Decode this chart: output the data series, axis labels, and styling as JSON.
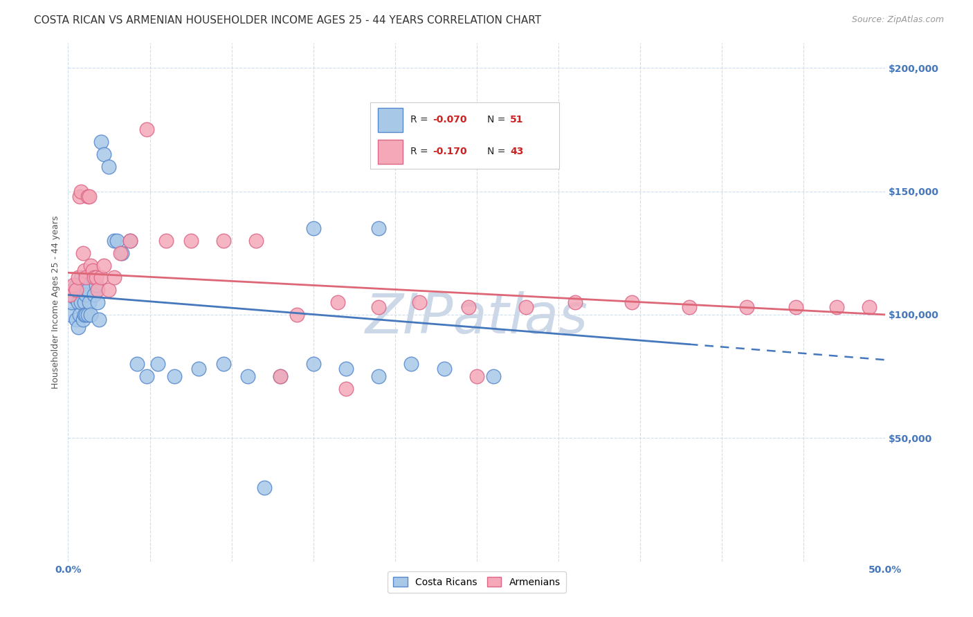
{
  "title": "COSTA RICAN VS ARMENIAN HOUSEHOLDER INCOME AGES 25 - 44 YEARS CORRELATION CHART",
  "source": "Source: ZipAtlas.com",
  "ylabel": "Householder Income Ages 25 - 44 years",
  "xlim": [
    0.0,
    0.5
  ],
  "ylim": [
    0,
    210000
  ],
  "cr_color": "#a8c8e8",
  "arm_color": "#f4a8b8",
  "cr_edge": "#5588cc",
  "arm_edge": "#dd6688",
  "bg_color": "#ffffff",
  "watermark_color": "#ccd8e8",
  "legend_r1": "R = -0.070",
  "legend_n1": "N = 51",
  "legend_r2": "R =  -0.170",
  "legend_n2": "N = 43",
  "cr_line_color": "#4477bb",
  "arm_line_color": "#dd6677",
  "costa_ricans_x": [
    0.001,
    0.002,
    0.003,
    0.004,
    0.005,
    0.005,
    0.006,
    0.006,
    0.007,
    0.007,
    0.008,
    0.008,
    0.009,
    0.009,
    0.01,
    0.01,
    0.011,
    0.011,
    0.012,
    0.012,
    0.013,
    0.014,
    0.015,
    0.016,
    0.017,
    0.018,
    0.019,
    0.02,
    0.022,
    0.025,
    0.028,
    0.03,
    0.033,
    0.038,
    0.042,
    0.048,
    0.055,
    0.065,
    0.08,
    0.095,
    0.11,
    0.13,
    0.15,
    0.17,
    0.19,
    0.21,
    0.23,
    0.26,
    0.15,
    0.19,
    0.12
  ],
  "costa_ricans_y": [
    100000,
    105000,
    110000,
    107000,
    98000,
    112000,
    95000,
    105000,
    100000,
    108000,
    115000,
    105000,
    98000,
    110000,
    105000,
    100000,
    108000,
    100000,
    110000,
    100000,
    105000,
    100000,
    115000,
    108000,
    112000,
    105000,
    98000,
    170000,
    165000,
    160000,
    130000,
    130000,
    125000,
    130000,
    80000,
    75000,
    80000,
    75000,
    78000,
    80000,
    75000,
    75000,
    80000,
    78000,
    75000,
    80000,
    78000,
    75000,
    135000,
    135000,
    30000
  ],
  "armenians_x": [
    0.001,
    0.003,
    0.005,
    0.006,
    0.007,
    0.008,
    0.009,
    0.01,
    0.011,
    0.012,
    0.013,
    0.014,
    0.015,
    0.016,
    0.017,
    0.018,
    0.02,
    0.022,
    0.025,
    0.028,
    0.032,
    0.038,
    0.048,
    0.06,
    0.075,
    0.095,
    0.115,
    0.14,
    0.165,
    0.19,
    0.215,
    0.245,
    0.28,
    0.31,
    0.345,
    0.38,
    0.415,
    0.445,
    0.47,
    0.49,
    0.17,
    0.25,
    0.13
  ],
  "armenians_y": [
    108000,
    112000,
    110000,
    115000,
    148000,
    150000,
    125000,
    118000,
    115000,
    148000,
    148000,
    120000,
    118000,
    115000,
    115000,
    110000,
    115000,
    120000,
    110000,
    115000,
    125000,
    130000,
    175000,
    130000,
    130000,
    130000,
    130000,
    100000,
    105000,
    103000,
    105000,
    103000,
    103000,
    105000,
    105000,
    103000,
    103000,
    103000,
    103000,
    103000,
    70000,
    75000,
    75000
  ],
  "title_fontsize": 11,
  "source_fontsize": 9,
  "axis_label_fontsize": 9,
  "tick_fontsize": 10
}
